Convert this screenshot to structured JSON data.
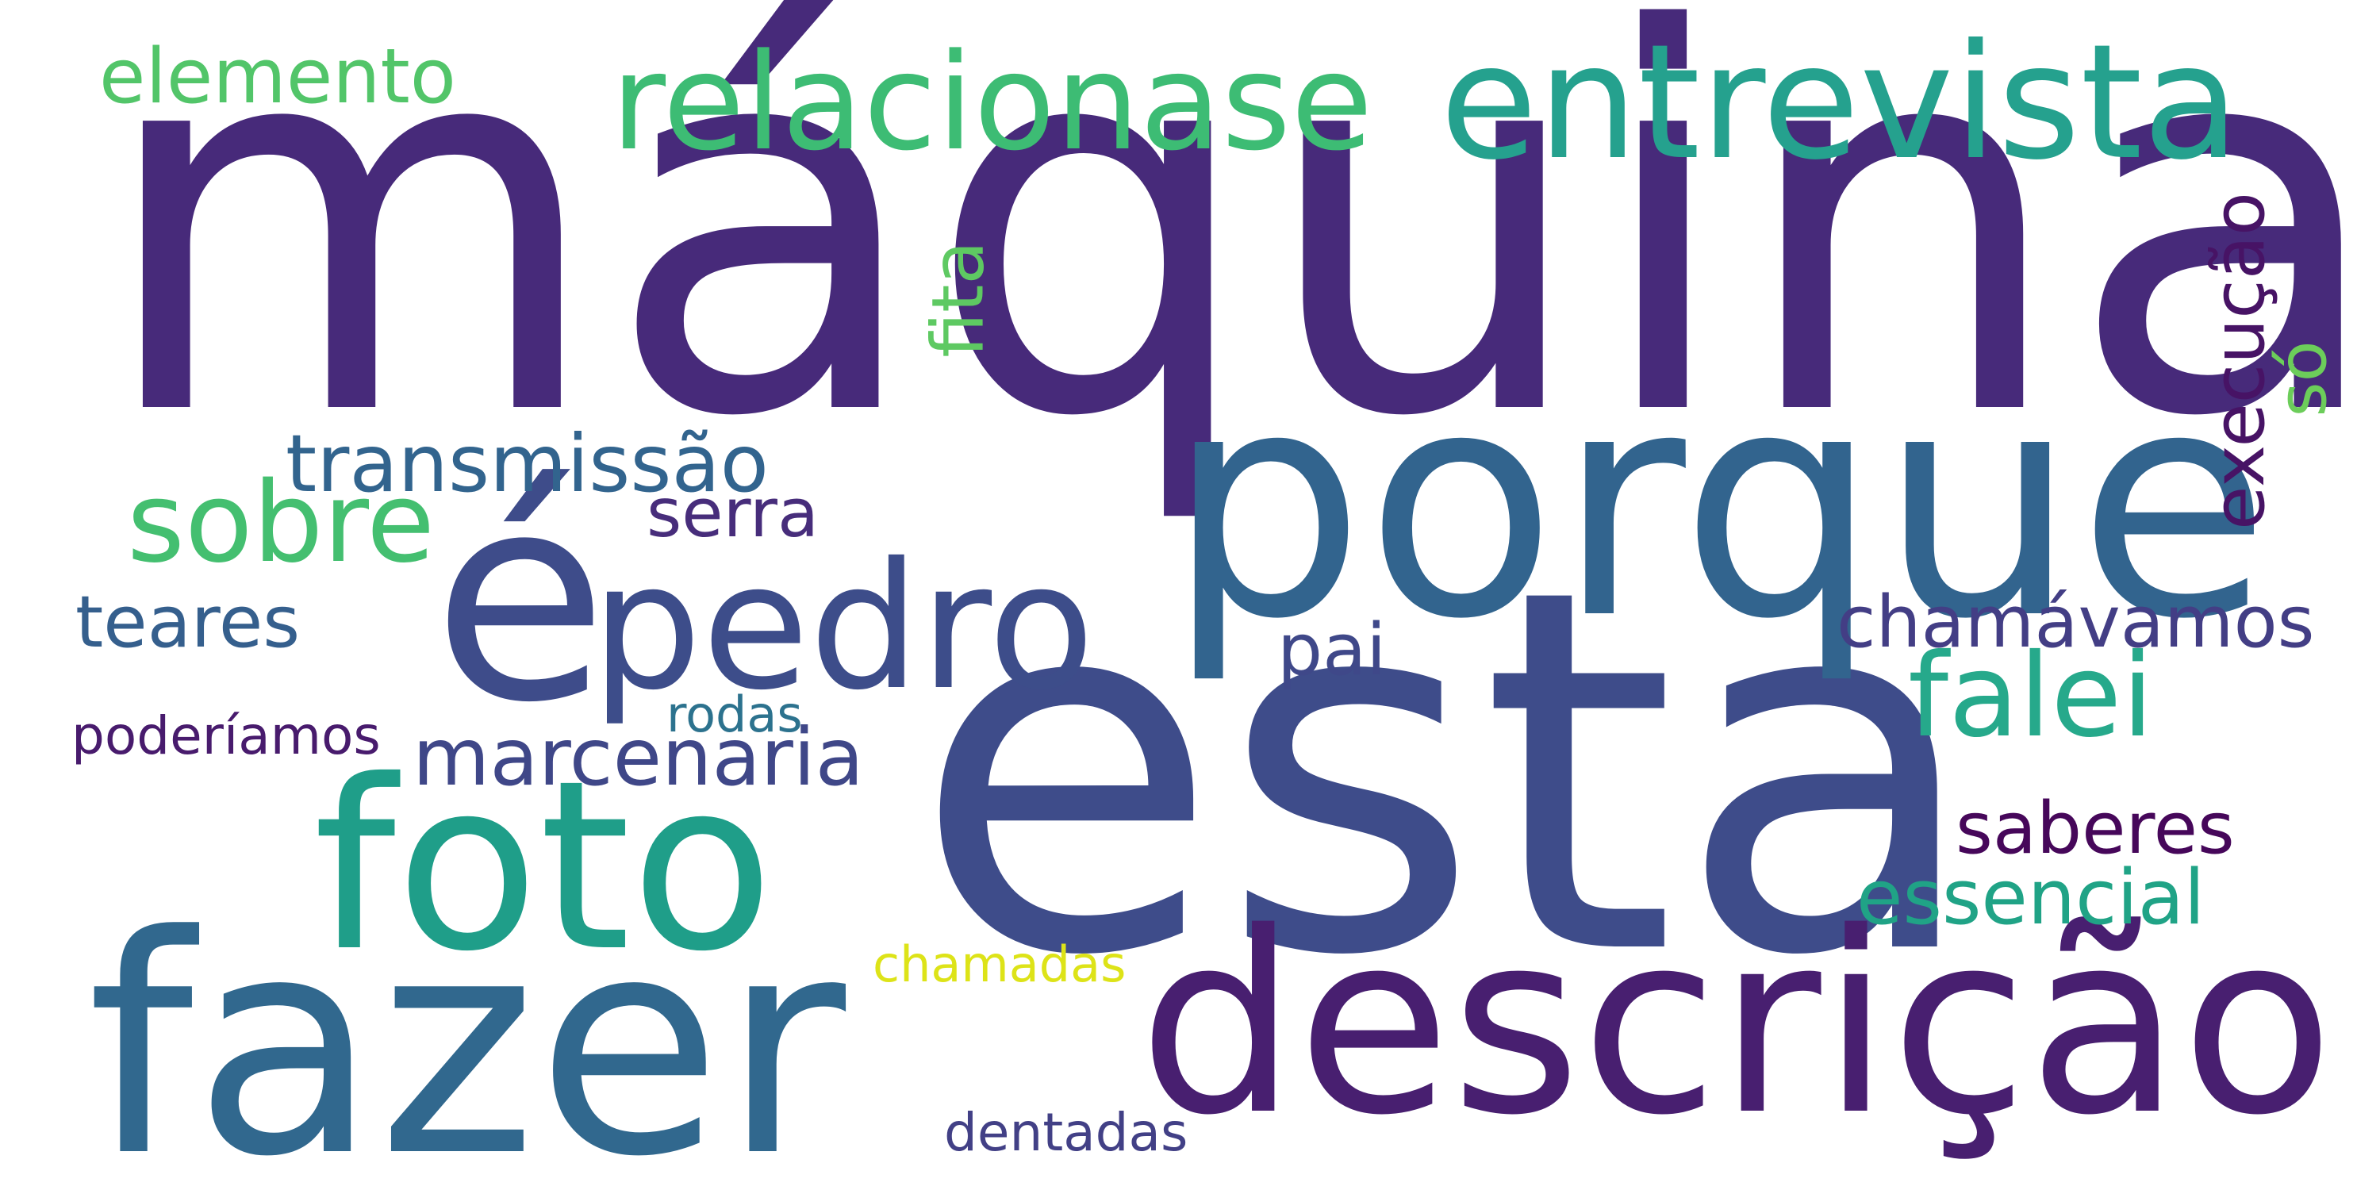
{
  "words": [
    {
      "text": "máquina",
      "color": "#472a7a",
      "orientation": "horizontal"
    },
    {
      "text": "esta",
      "color": "#3e4c8a",
      "orientation": "horizontal"
    },
    {
      "text": "porque",
      "color": "#32648e",
      "orientation": "horizontal"
    },
    {
      "text": "é",
      "color": "#3e4c8a",
      "orientation": "horizontal"
    },
    {
      "text": "descrição",
      "color": "#481f70",
      "orientation": "horizontal"
    },
    {
      "text": "fazer",
      "color": "#31688e",
      "orientation": "horizontal"
    },
    {
      "text": "foto",
      "color": "#1f9e89",
      "orientation": "horizontal"
    },
    {
      "text": "entrevista",
      "color": "#25a18e",
      "orientation": "horizontal"
    },
    {
      "text": "relacionase",
      "color": "#3dbc74",
      "orientation": "horizontal"
    },
    {
      "text": "pedro",
      "color": "#3d4d8a",
      "orientation": "horizontal"
    },
    {
      "text": "sobre",
      "color": "#44bf70",
      "orientation": "horizontal"
    },
    {
      "text": "falei",
      "color": "#26a98b",
      "orientation": "horizontal"
    },
    {
      "text": "transmissão",
      "color": "#32648e",
      "orientation": "horizontal"
    },
    {
      "text": "execução",
      "color": "#471365",
      "orientation": "vertical"
    },
    {
      "text": "fita",
      "color": "#5ec962",
      "orientation": "vertical"
    },
    {
      "text": "só",
      "color": "#6ccd5a",
      "orientation": "vertical"
    },
    {
      "text": "elemento",
      "color": "#52c569",
      "orientation": "horizontal"
    },
    {
      "text": "marcenaria",
      "color": "#3f4788",
      "orientation": "horizontal"
    },
    {
      "text": "chamávamos",
      "color": "#433e85",
      "orientation": "horizontal"
    },
    {
      "text": "saberes",
      "color": "#46075a",
      "orientation": "horizontal"
    },
    {
      "text": "essencial",
      "color": "#20a386",
      "orientation": "horizontal"
    },
    {
      "text": "teares",
      "color": "#355f8d",
      "orientation": "horizontal"
    },
    {
      "text": "serra",
      "color": "#472d7b",
      "orientation": "horizontal"
    },
    {
      "text": "pai",
      "color": "#3f4889",
      "orientation": "horizontal"
    },
    {
      "text": "poderíamos",
      "color": "#481b6d",
      "orientation": "horizontal"
    },
    {
      "text": "rodas",
      "color": "#2c728e",
      "orientation": "horizontal"
    },
    {
      "text": "chamadas",
      "color": "#dde318",
      "orientation": "horizontal"
    },
    {
      "text": "dentadas",
      "color": "#424086",
      "orientation": "horizontal"
    }
  ]
}
